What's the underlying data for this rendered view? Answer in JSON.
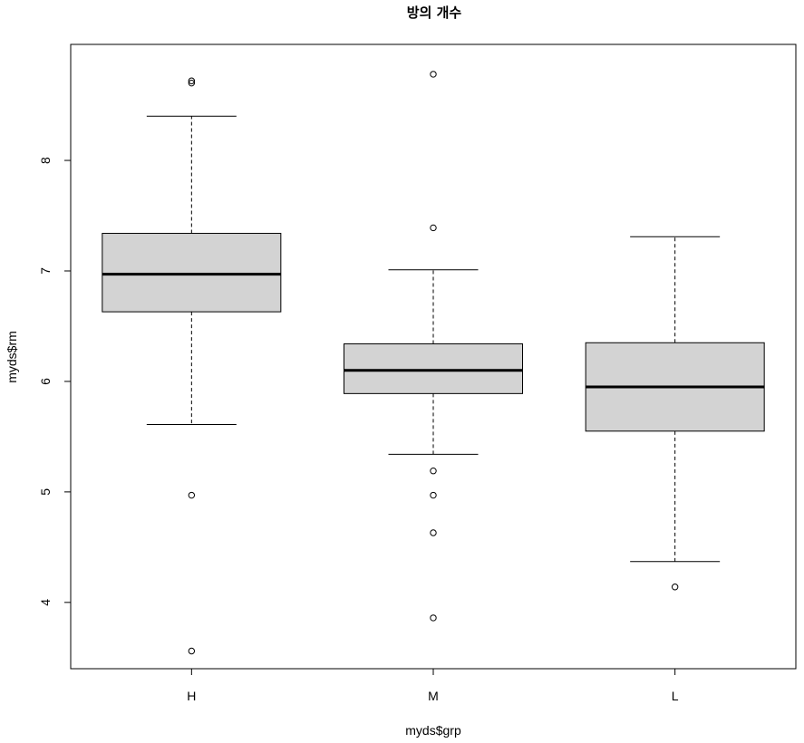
{
  "chart_data": {
    "type": "boxplot",
    "title": "방의 개수",
    "xlabel": "myds$grp",
    "ylabel": "myds$rm",
    "categories": [
      "H",
      "M",
      "L"
    ],
    "ylim": [
      3.4,
      9.05
    ],
    "yticks": [
      4,
      5,
      6,
      7,
      8
    ],
    "grid": false,
    "box_fill": "#d3d3d3",
    "boxes": [
      {
        "category": "H",
        "whisker_low": 5.61,
        "q1": 6.63,
        "median": 6.97,
        "q3": 7.34,
        "whisker_high": 8.4,
        "outliers": [
          8.7,
          8.72,
          4.97,
          3.56
        ]
      },
      {
        "category": "M",
        "whisker_low": 5.34,
        "q1": 5.89,
        "median": 6.1,
        "q3": 6.34,
        "whisker_high": 7.01,
        "outliers": [
          8.78,
          7.39,
          5.19,
          4.97,
          4.63,
          3.86
        ]
      },
      {
        "category": "L",
        "whisker_low": 4.37,
        "q1": 5.55,
        "median": 5.95,
        "q3": 6.35,
        "whisker_high": 7.31,
        "outliers": [
          4.14
        ]
      }
    ]
  }
}
